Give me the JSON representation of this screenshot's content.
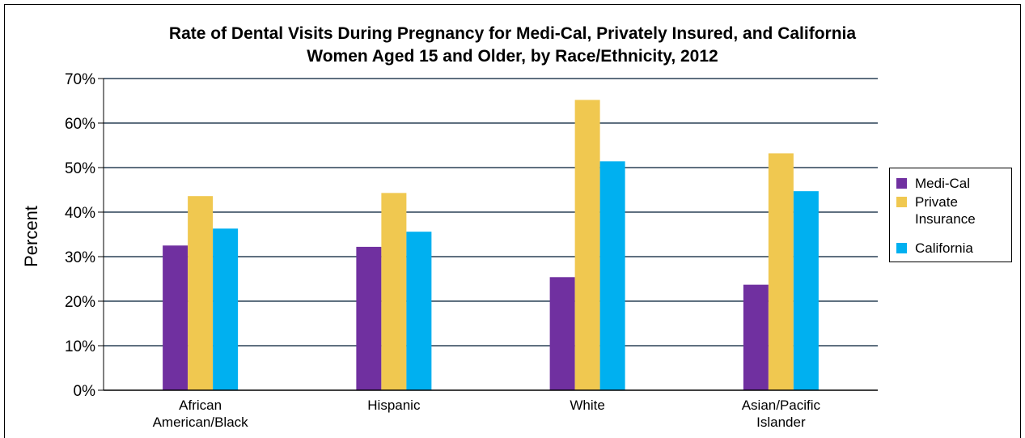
{
  "chart_data": {
    "type": "bar",
    "title": [
      "Rate of Dental Visits During Pregnancy for Medi-Cal, Privately Insured, and California",
      "Women Aged 15 and Older, by Race/Ethnicity, 2012"
    ],
    "ylabel": "Percent",
    "xlabel": "",
    "ylim": [
      0,
      70
    ],
    "ytick_step": 10,
    "ytick_labels": [
      "0%",
      "10%",
      "20%",
      "30%",
      "40%",
      "50%",
      "60%",
      "70%"
    ],
    "grid": true,
    "legend_position": "right",
    "categories": [
      [
        "African",
        "American/Black"
      ],
      [
        "Hispanic"
      ],
      [
        "White"
      ],
      [
        "Asian/Pacific",
        "Islander"
      ]
    ],
    "series": [
      {
        "name": "Medi-Cal",
        "color": "#7030a0",
        "values": [
          32.5,
          32.2,
          25.4,
          23.7
        ]
      },
      {
        "name": "Private Insurance",
        "color": "#f0c850",
        "values": [
          43.6,
          44.3,
          65.2,
          53.2
        ]
      },
      {
        "name": "California",
        "color": "#00b0f0",
        "values": [
          36.3,
          35.6,
          51.4,
          44.7
        ]
      }
    ]
  },
  "legend": {
    "items": [
      {
        "label": "Medi-Cal",
        "color": "#7030a0"
      },
      {
        "label": "Private Insurance",
        "color": "#f0c850"
      },
      {
        "label": "California",
        "color": "#00b0f0"
      }
    ]
  }
}
